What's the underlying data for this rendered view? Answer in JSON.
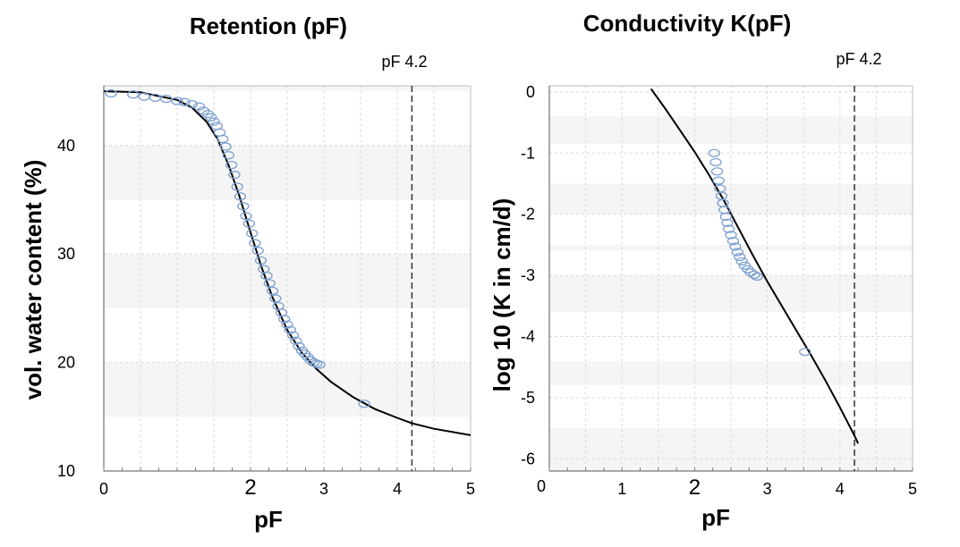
{
  "chart_data": [
    {
      "type": "scatter",
      "title": "Retention (pF)",
      "xlabel": "pF",
      "ylabel": "vol. water content (%)",
      "xlim": [
        0,
        5
      ],
      "ylim": [
        10,
        45.5
      ],
      "x_ticks": [
        {
          "v": 0,
          "label": "0"
        },
        {
          "v": 2,
          "label": "2"
        },
        {
          "v": 3,
          "label": "3"
        },
        {
          "v": 4,
          "label": "4"
        },
        {
          "v": 5,
          "label": "5"
        }
      ],
      "y_ticks": [
        {
          "v": 10,
          "label": "10"
        },
        {
          "v": 20,
          "label": "20"
        },
        {
          "v": 30,
          "label": "30"
        },
        {
          "v": 40,
          "label": "40"
        }
      ],
      "bands": [
        [
          15,
          20
        ],
        [
          25,
          30
        ],
        [
          35,
          40
        ],
        [
          45,
          45.5
        ]
      ],
      "vline": {
        "x": 4.2,
        "label": "pF 4.2"
      },
      "grid": true,
      "series": [
        {
          "kind": "points",
          "color": "#7b9fd0",
          "x": [
            0.1,
            0.4,
            0.55,
            0.7,
            0.85,
            1.0,
            1.1,
            1.2,
            1.3,
            1.36,
            1.42,
            1.46,
            1.5,
            1.54,
            1.58,
            1.62,
            1.66,
            1.7,
            1.74,
            1.78,
            1.82,
            1.86,
            1.9,
            1.94,
            1.98,
            2.02,
            2.06,
            2.1,
            2.14,
            2.18,
            2.22,
            2.26,
            2.3,
            2.34,
            2.38,
            2.42,
            2.46,
            2.5,
            2.54,
            2.58,
            2.62,
            2.66,
            2.7,
            2.74,
            2.78,
            2.82,
            2.86,
            2.9,
            2.94,
            3.55
          ],
          "y": [
            44.8,
            44.7,
            44.5,
            44.4,
            44.3,
            44.1,
            44.0,
            43.8,
            43.6,
            43.2,
            42.9,
            42.6,
            42.2,
            41.8,
            41.2,
            40.6,
            39.9,
            39.1,
            38.2,
            37.3,
            36.2,
            35.3,
            34.4,
            33.5,
            32.8,
            31.9,
            31.0,
            30.3,
            29.4,
            28.6,
            28.0,
            27.3,
            26.6,
            25.9,
            25.2,
            24.6,
            24.0,
            23.5,
            23.0,
            22.5,
            22.0,
            21.5,
            21.1,
            20.8,
            20.5,
            20.2,
            20.0,
            19.9,
            19.8,
            16.2
          ]
        },
        {
          "kind": "line",
          "color": "#000000",
          "x": [
            0,
            0.5,
            1.0,
            1.2,
            1.4,
            1.55,
            1.7,
            1.85,
            2.0,
            2.15,
            2.3,
            2.5,
            2.7,
            2.9,
            3.1,
            3.4,
            3.7,
            4.0,
            4.2,
            4.5,
            5.0
          ],
          "y": [
            45.0,
            44.9,
            44.2,
            43.5,
            42.2,
            40.6,
            38.2,
            35.3,
            32.0,
            28.8,
            26.0,
            23.0,
            20.9,
            19.4,
            18.2,
            16.8,
            15.7,
            14.9,
            14.4,
            13.9,
            13.3
          ]
        }
      ]
    },
    {
      "type": "scatter",
      "title": "Conductivity K(pF)",
      "xlabel": "pF",
      "ylabel": "log 10 (K in cm/d)",
      "xlim": [
        0,
        5
      ],
      "ylim": [
        -6.2,
        0.1
      ],
      "x_ticks": [
        {
          "v": 1,
          "label": "1"
        },
        {
          "v": 2,
          "label": "2"
        },
        {
          "v": 3,
          "label": "3"
        },
        {
          "v": 4,
          "label": "4"
        },
        {
          "v": 5,
          "label": "5"
        }
      ],
      "x_origin_label": "0",
      "y_ticks": [
        {
          "v": 0,
          "label": "0"
        },
        {
          "v": -1,
          "label": "-1"
        },
        {
          "v": -2,
          "label": "-2"
        },
        {
          "v": -3,
          "label": "-3"
        },
        {
          "v": -4,
          "label": "-4"
        },
        {
          "v": -5,
          "label": "-5"
        },
        {
          "v": -6,
          "label": "-6"
        }
      ],
      "bands": [
        [
          -0.85,
          -0.4
        ],
        [
          -2.0,
          -1.5
        ],
        [
          -2.6,
          -2.5
        ],
        [
          -3.6,
          -3.0
        ],
        [
          -4.8,
          -4.4
        ],
        [
          -6.2,
          -5.5
        ]
      ],
      "vline": {
        "x": 4.2,
        "label": "pF 4.2"
      },
      "grid": true,
      "series": [
        {
          "kind": "points",
          "color": "#7b9fd0",
          "x": [
            2.27,
            2.29,
            2.31,
            2.33,
            2.35,
            2.37,
            2.39,
            2.41,
            2.43,
            2.45,
            2.47,
            2.5,
            2.53,
            2.56,
            2.59,
            2.62,
            2.65,
            2.69,
            2.73,
            2.77,
            2.82,
            2.86,
            3.52
          ],
          "y": [
            -1.0,
            -1.15,
            -1.3,
            -1.45,
            -1.58,
            -1.7,
            -1.82,
            -1.93,
            -2.04,
            -2.14,
            -2.24,
            -2.34,
            -2.44,
            -2.53,
            -2.62,
            -2.7,
            -2.77,
            -2.84,
            -2.9,
            -2.95,
            -2.99,
            -3.02,
            -4.25
          ]
        },
        {
          "kind": "line",
          "color": "#000000",
          "x": [
            1.4,
            1.6,
            1.8,
            2.0,
            2.2,
            2.4,
            2.6,
            2.8,
            3.0,
            3.2,
            3.4,
            3.6,
            3.8,
            4.0,
            4.2,
            4.25
          ],
          "y": [
            0.05,
            -0.28,
            -0.63,
            -0.98,
            -1.36,
            -1.77,
            -2.22,
            -2.67,
            -3.1,
            -3.5,
            -3.9,
            -4.3,
            -4.72,
            -5.16,
            -5.62,
            -5.75
          ]
        }
      ]
    }
  ]
}
